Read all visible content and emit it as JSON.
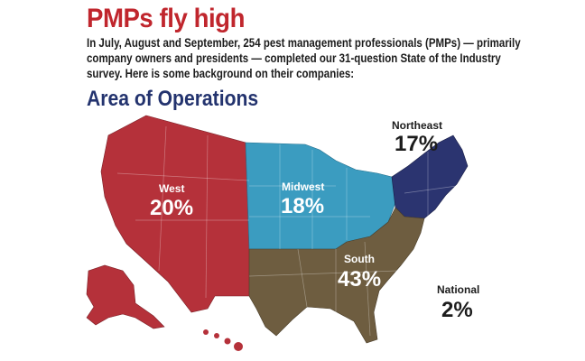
{
  "article": {
    "headline": "PMPs fly high",
    "intro": "In July, August and September, 254 pest management professionals (PMPs) — primarily company owners and presidents — completed our 31-question State of the Industry survey. Here is some background on their companies:",
    "section_title": "Area of Operations"
  },
  "map": {
    "regions": [
      {
        "id": "west",
        "label": "West",
        "value": "20%",
        "color": "#b5313a"
      },
      {
        "id": "midwest",
        "label": "Midwest",
        "value": "18%",
        "color": "#3b9cc0"
      },
      {
        "id": "northeast",
        "label": "Northeast",
        "value": "17%",
        "color": "#2b3470"
      },
      {
        "id": "south",
        "label": "South",
        "value": "43%",
        "color": "#6e5d40"
      },
      {
        "id": "national",
        "label": "National",
        "value": "2%",
        "color": "#1c1c1c"
      }
    ]
  }
}
